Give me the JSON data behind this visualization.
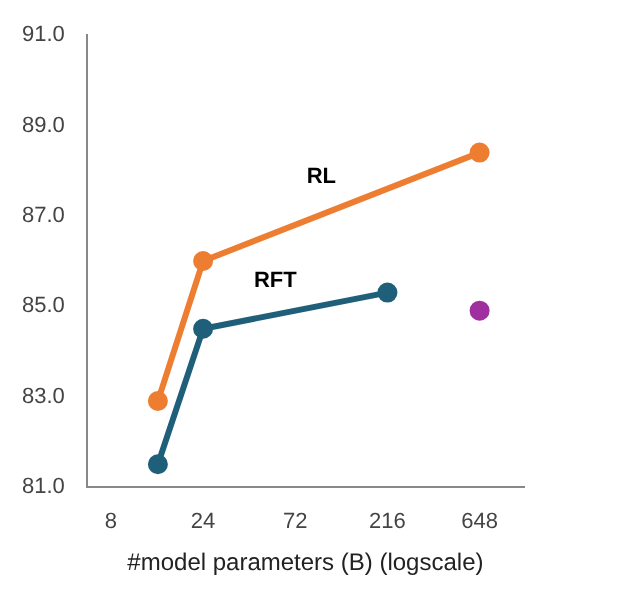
{
  "chart_data": {
    "type": "line",
    "xlabel": "#model parameters (B) (logscale)",
    "log": "x",
    "xlim": [
      6,
      1100
    ],
    "xticks": [
      8,
      24,
      72,
      216,
      648
    ],
    "ylim": [
      81,
      91
    ],
    "yticks": [
      {
        "value": 81,
        "label": "81.0"
      },
      {
        "value": 83,
        "label": "83.0"
      },
      {
        "value": 85,
        "label": "85.0"
      },
      {
        "value": 87,
        "label": "87.0"
      },
      {
        "value": 89,
        "label": "89.0"
      },
      {
        "value": 91,
        "label": "91.0"
      }
    ],
    "grid": false,
    "legend": false,
    "marker": "circle",
    "series": [
      {
        "name": "RL",
        "color": "#ed7d31",
        "x": [
          14,
          24,
          648
        ],
        "values": [
          82.9,
          86.0,
          88.4
        ]
      },
      {
        "name": "RFT",
        "color": "#1f5f7a",
        "x": [
          14,
          24,
          216
        ],
        "values": [
          81.5,
          84.5,
          85.3
        ]
      },
      {
        "type": "scatter",
        "color": "#a030a0",
        "x": [
          648
        ],
        "values": [
          84.9
        ]
      }
    ]
  }
}
